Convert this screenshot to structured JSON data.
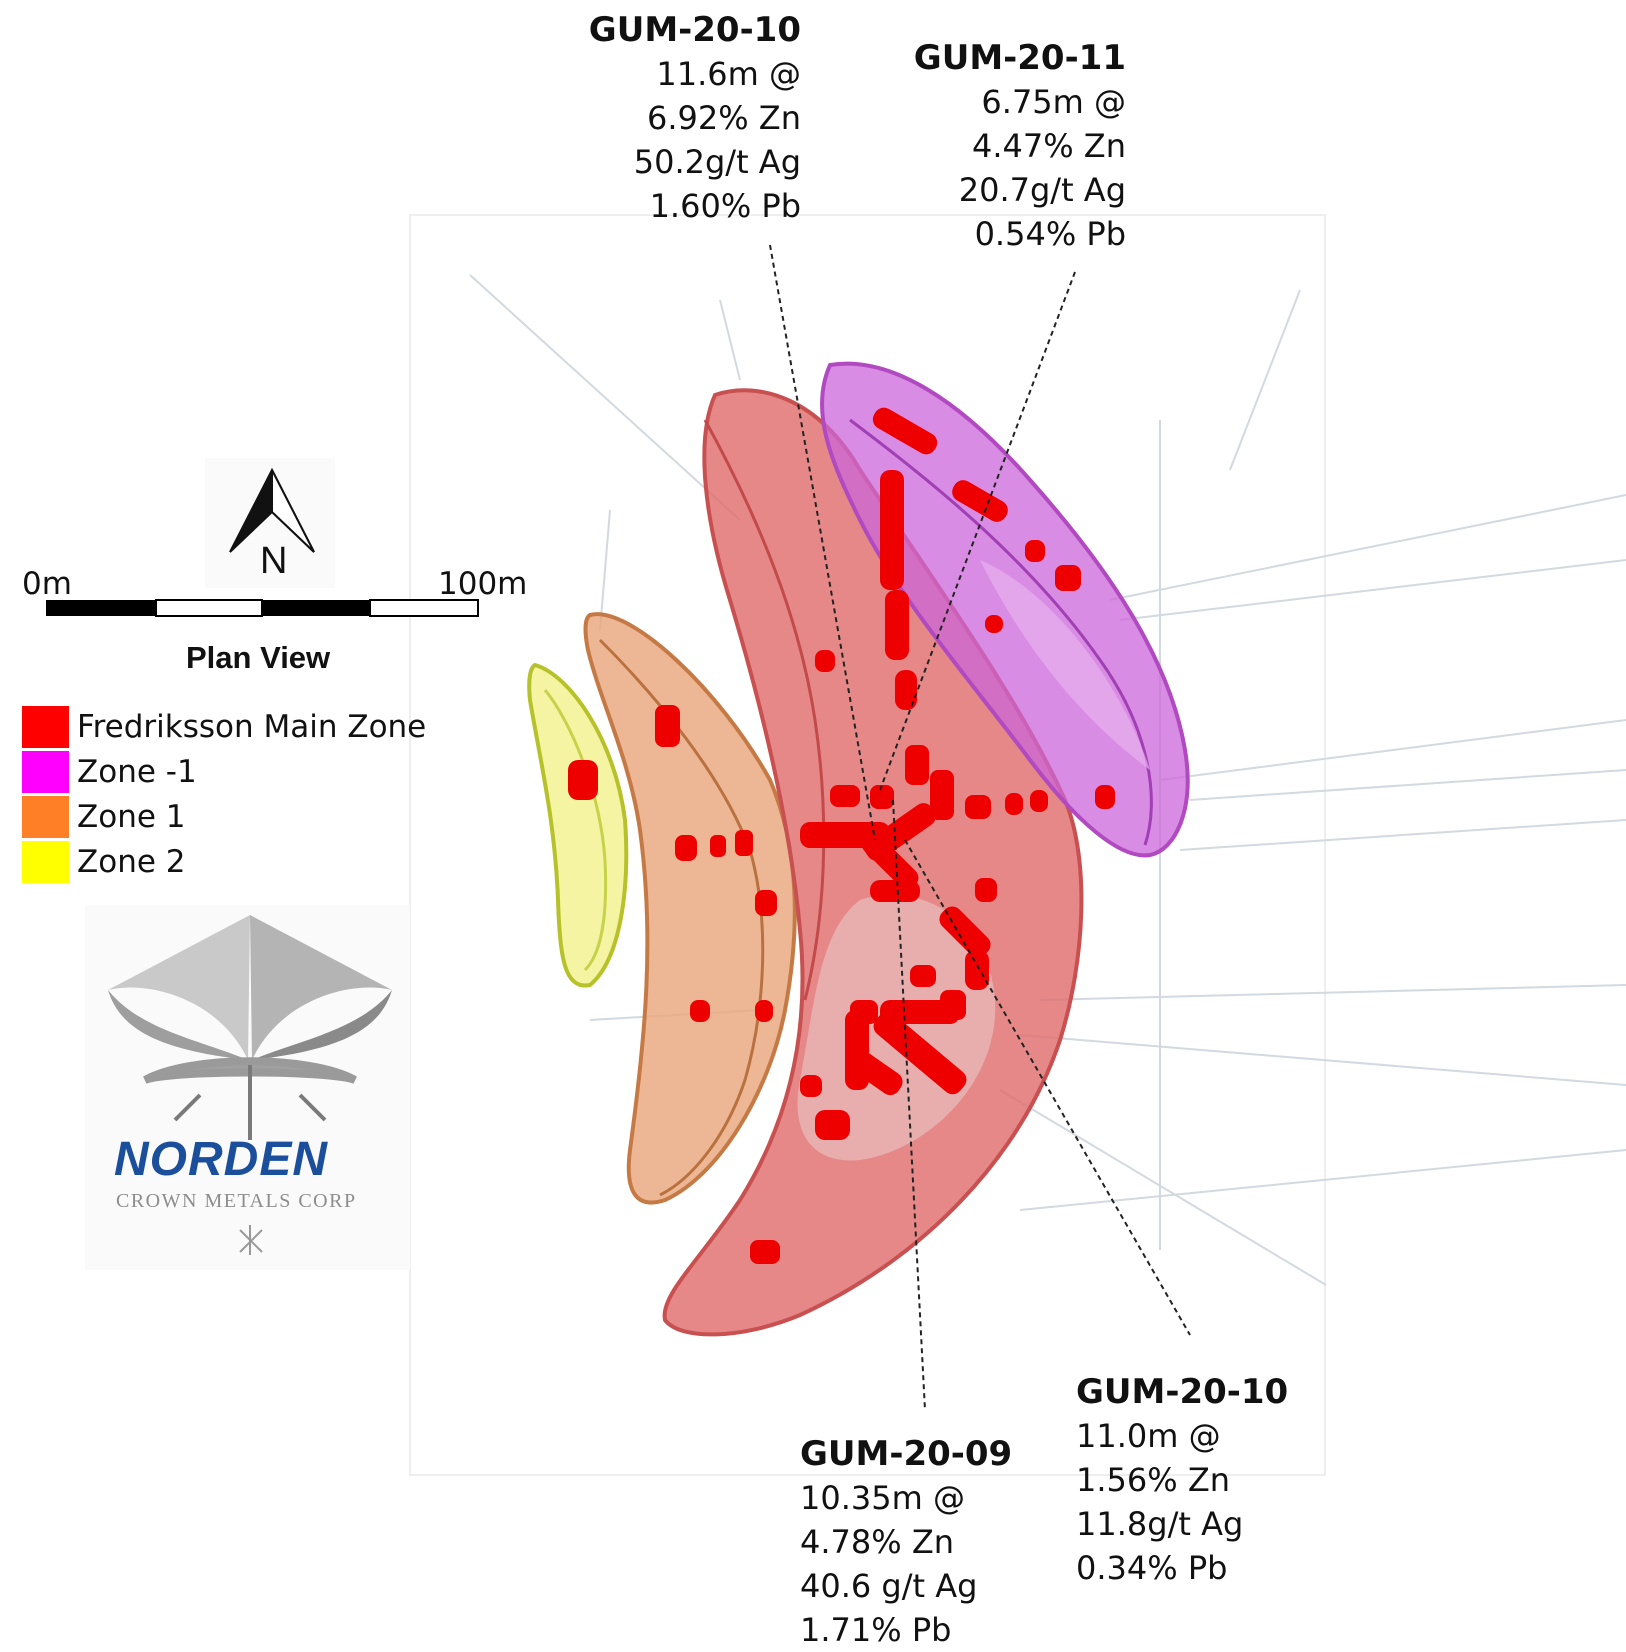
{
  "callouts": [
    {
      "hole": "GUM-20-10",
      "lines": [
        "11.6m @",
        "6.92% Zn",
        "50.2g/t Ag",
        "1.60% Pb"
      ]
    },
    {
      "hole": "GUM-20-11",
      "lines": [
        "6.75m @",
        "4.47% Zn",
        "20.7g/t Ag",
        "0.54% Pb"
      ]
    },
    {
      "hole": "GUM-20-09",
      "lines": [
        "10.35m @",
        "4.78% Zn",
        "40.6 g/t Ag",
        "1.71% Pb"
      ]
    },
    {
      "hole": "GUM-20-10",
      "lines": [
        "11.0m @",
        "1.56% Zn",
        "11.8g/t Ag",
        "0.34% Pb"
      ]
    }
  ],
  "scale_bar": {
    "start": "0m",
    "end": "100m",
    "caption": "Plan View"
  },
  "north_arrow": {
    "icon": "north-arrow-icon",
    "letter": "N"
  },
  "legend": [
    {
      "label": "Fredriksson Main Zone",
      "color": "#ff0000"
    },
    {
      "label": "Zone -1",
      "color": "#ff00ff"
    },
    {
      "label": "Zone 1",
      "color": "#ff7f27"
    },
    {
      "label": "Zone 2",
      "color": "#ffff00"
    }
  ],
  "logo": {
    "name": "NORDEN",
    "tagline": "CROWN METALS CORP",
    "icon": "crown-logo-icon"
  }
}
